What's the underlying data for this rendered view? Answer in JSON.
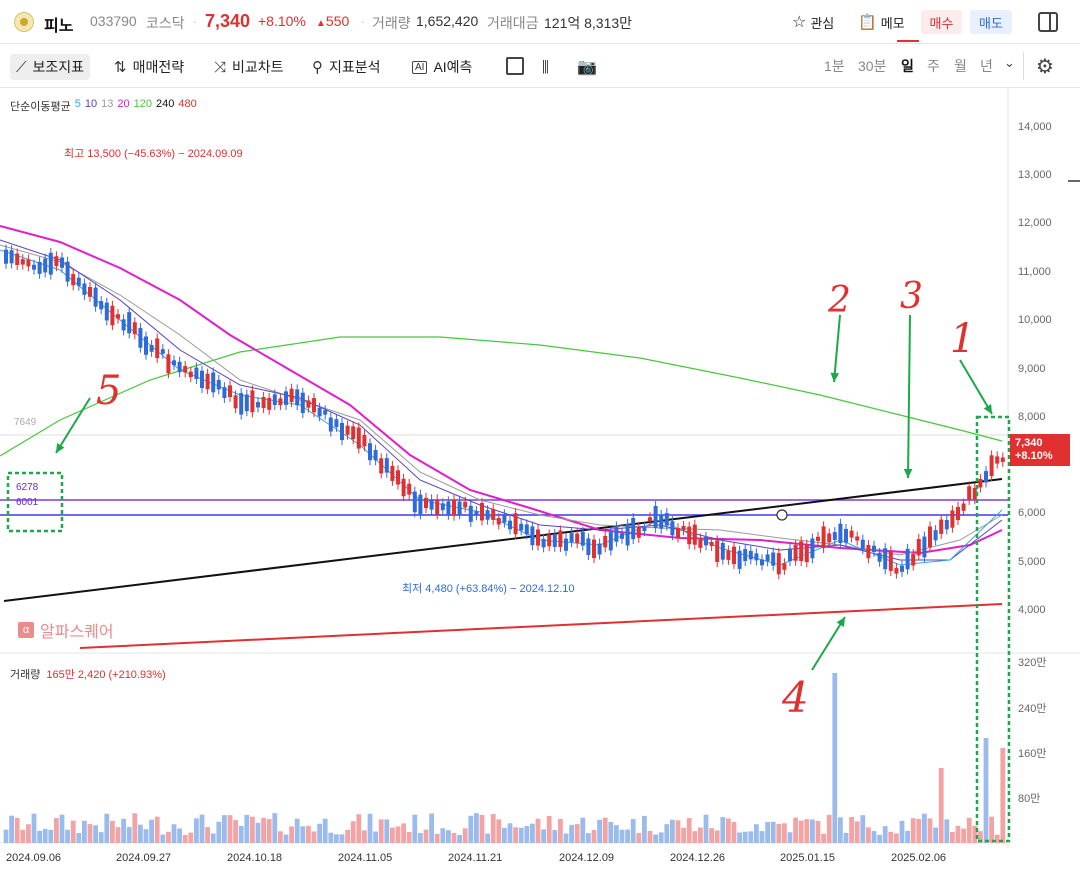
{
  "header": {
    "name": "피노",
    "code": "033790",
    "market": "코스닥",
    "price": "7,340",
    "change_pct": "+8.10%",
    "change_amt": "550",
    "volume_label": "거래량",
    "volume_value": "1,652,420",
    "amount_label": "거래대금",
    "amount_value": "121억 8,313만",
    "fav_label": "관심",
    "memo_label": "메모",
    "buy_label": "매수",
    "sell_label": "매도"
  },
  "toolbar": {
    "indicators": "보조지표",
    "strategy": "매매전략",
    "compare": "비교차트",
    "analysis": "지표분석",
    "ai": "AI예측",
    "periods": [
      "1분",
      "30분",
      "일",
      "주",
      "월",
      "년"
    ]
  },
  "ma_legend": {
    "title": "단순이동평균",
    "items": [
      {
        "label": "5",
        "color": "#38a6e6"
      },
      {
        "label": "10",
        "color": "#5a3fc4"
      },
      {
        "label": "13",
        "color": "#9a9a9a"
      },
      {
        "label": "20",
        "color": "#e01fc9"
      },
      {
        "label": "120",
        "color": "#46c83a"
      },
      {
        "label": "240",
        "color": "#111111"
      },
      {
        "label": "480",
        "color": "#e0302f"
      }
    ]
  },
  "volume_legend": {
    "label": "거래량",
    "value": "165만 2,420 (+210.93%)"
  },
  "annotations": {
    "high": "최고 13,500 (−45.63%) − 2024.09.09",
    "low": "최저 4,480 (+63.84%) − 2024.12.10",
    "ref_price": "7649",
    "level1": "6278",
    "level2": "6001",
    "price_tag_value": "7,340",
    "price_tag_pct": "+8.10%",
    "watermark": "알파스퀘어",
    "watermark_icon": "α",
    "hand_marks": [
      "1",
      "2",
      "3",
      "4",
      "5"
    ]
  },
  "chart_data": {
    "type": "candlestick",
    "y_axis": [
      "14,000",
      "13,000",
      "12,000",
      "11,000",
      "10,000",
      "9,000",
      "8,000",
      "7,000",
      "6,000",
      "5,000",
      "4,000"
    ],
    "volume_axis": [
      "320만",
      "240만",
      "160만",
      "80만"
    ],
    "x_axis": [
      "2024.09.06",
      "2024.09.27",
      "2024.10.18",
      "2024.11.05",
      "2024.11.21",
      "2024.12.09",
      "2024.12.26",
      "2025.01.15",
      "2025.02.06"
    ],
    "price_range": [
      4000,
      14000
    ],
    "last_close": 7340,
    "period_high": 13500,
    "period_low": 4480
  }
}
